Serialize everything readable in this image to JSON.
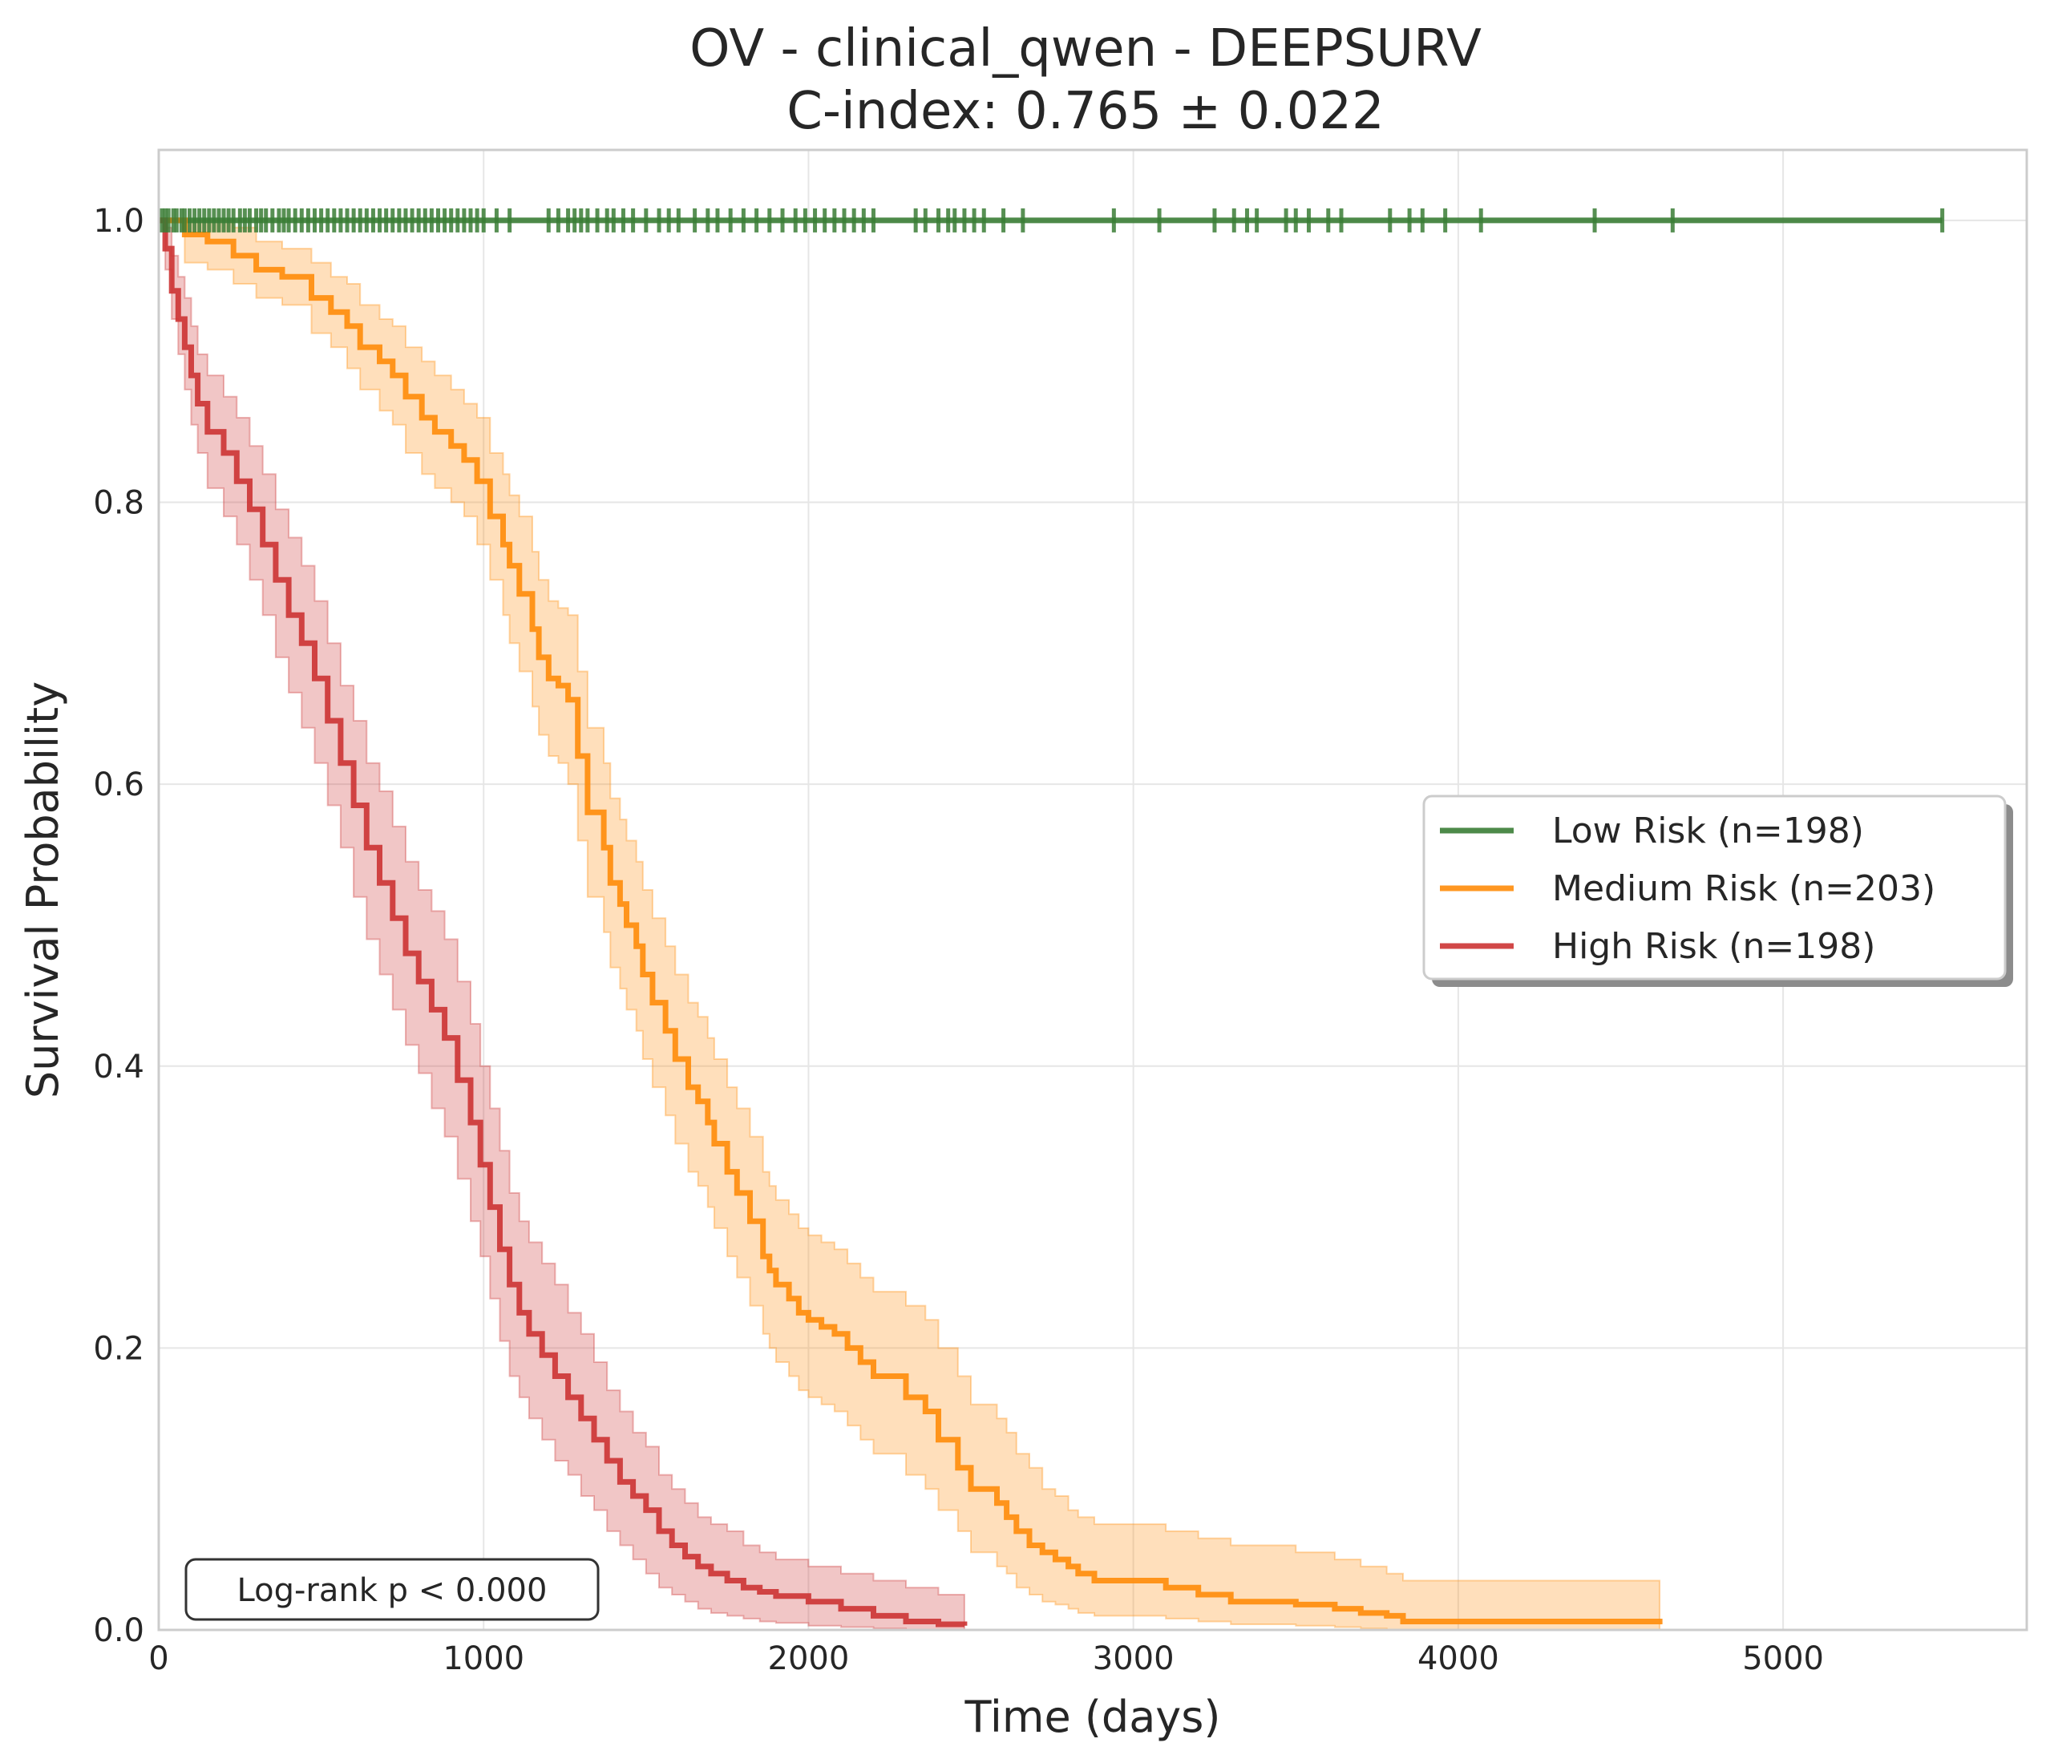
{
  "chart_data": {
    "type": "line",
    "title": "OV - clinical_qwen - DEEPSURV",
    "subtitle": "C-index: 0.765 ± 0.022",
    "xlabel": "Time (days)",
    "ylabel": "Survival Probability",
    "xlim": [
      0,
      5750
    ],
    "ylim": [
      0,
      1.05
    ],
    "x_ticks": [
      0,
      1000,
      2000,
      3000,
      4000,
      5000
    ],
    "x_tick_labels": [
      "0",
      "1000",
      "2000",
      "3000",
      "4000",
      "5000"
    ],
    "y_ticks": [
      0,
      0.2,
      0.4,
      0.6,
      0.8,
      1.0
    ],
    "y_tick_labels": [
      "0.0",
      "0.2",
      "0.4",
      "0.6",
      "0.8",
      "1.0"
    ],
    "grid": true,
    "legend_position": "center-right",
    "annotation": "Log-rank p < 0.000",
    "series": [
      {
        "name": "Low Risk (n=198)",
        "color": "#3a7d35",
        "x": [
          0,
          5490
        ],
        "y": [
          1.0,
          1.0
        ],
        "censor_times": [
          10,
          20,
          30,
          45,
          55,
          70,
          80,
          95,
          110,
          125,
          140,
          155,
          170,
          185,
          200,
          215,
          230,
          250,
          265,
          280,
          300,
          315,
          330,
          350,
          370,
          385,
          400,
          420,
          440,
          460,
          480,
          500,
          520,
          540,
          560,
          580,
          600,
          620,
          640,
          660,
          680,
          700,
          720,
          740,
          760,
          780,
          800,
          820,
          840,
          860,
          880,
          900,
          920,
          940,
          960,
          980,
          1000,
          1040,
          1080,
          1200,
          1230,
          1260,
          1280,
          1300,
          1320,
          1350,
          1380,
          1400,
          1430,
          1460,
          1500,
          1540,
          1570,
          1600,
          1650,
          1690,
          1720,
          1760,
          1800,
          1840,
          1880,
          1920,
          1960,
          1990,
          2020,
          2050,
          2080,
          2110,
          2140,
          2170,
          2200,
          2330,
          2360,
          2400,
          2430,
          2450,
          2480,
          2510,
          2540,
          2600,
          2660,
          2940,
          3080,
          3250,
          3310,
          3350,
          3380,
          3470,
          3500,
          3540,
          3600,
          3640,
          3790,
          3850,
          3890,
          3960,
          4070,
          4420,
          4660,
          5490
        ]
      },
      {
        "name": "Medium Risk (n=203)",
        "color": "#ff8c0a",
        "x": [
          0,
          80,
          150,
          230,
          300,
          380,
          470,
          530,
          580,
          620,
          680,
          720,
          760,
          810,
          850,
          900,
          940,
          980,
          1020,
          1060,
          1080,
          1110,
          1150,
          1170,
          1200,
          1230,
          1260,
          1290,
          1320,
          1370,
          1390,
          1420,
          1440,
          1470,
          1490,
          1520,
          1560,
          1590,
          1630,
          1660,
          1690,
          1710,
          1750,
          1780,
          1820,
          1860,
          1880,
          1900,
          1940,
          1970,
          2000,
          2040,
          2080,
          2120,
          2160,
          2200,
          2300,
          2360,
          2400,
          2460,
          2500,
          2580,
          2610,
          2640,
          2680,
          2720,
          2760,
          2800,
          2830,
          2880,
          3100,
          3200,
          3300,
          3500,
          3620,
          3700,
          3780,
          3830,
          4620
        ],
        "y": [
          1.0,
          0.99,
          0.985,
          0.975,
          0.965,
          0.96,
          0.945,
          0.935,
          0.925,
          0.91,
          0.9,
          0.89,
          0.875,
          0.86,
          0.85,
          0.84,
          0.83,
          0.815,
          0.79,
          0.77,
          0.755,
          0.735,
          0.71,
          0.69,
          0.675,
          0.67,
          0.66,
          0.62,
          0.58,
          0.555,
          0.53,
          0.515,
          0.5,
          0.485,
          0.465,
          0.445,
          0.425,
          0.405,
          0.385,
          0.375,
          0.36,
          0.345,
          0.325,
          0.31,
          0.29,
          0.265,
          0.255,
          0.245,
          0.235,
          0.225,
          0.22,
          0.215,
          0.21,
          0.2,
          0.19,
          0.18,
          0.165,
          0.155,
          0.135,
          0.115,
          0.1,
          0.09,
          0.08,
          0.07,
          0.06,
          0.055,
          0.05,
          0.045,
          0.04,
          0.035,
          0.03,
          0.025,
          0.02,
          0.018,
          0.015,
          0.012,
          0.01,
          0.006,
          0.004
        ],
        "ci_lower": [
          1.0,
          0.97,
          0.965,
          0.955,
          0.945,
          0.94,
          0.92,
          0.91,
          0.895,
          0.88,
          0.865,
          0.855,
          0.835,
          0.82,
          0.81,
          0.8,
          0.79,
          0.77,
          0.745,
          0.72,
          0.7,
          0.68,
          0.655,
          0.635,
          0.62,
          0.615,
          0.6,
          0.56,
          0.52,
          0.495,
          0.47,
          0.455,
          0.44,
          0.425,
          0.405,
          0.385,
          0.365,
          0.345,
          0.325,
          0.315,
          0.3,
          0.285,
          0.265,
          0.25,
          0.23,
          0.21,
          0.2,
          0.19,
          0.18,
          0.17,
          0.165,
          0.16,
          0.155,
          0.145,
          0.135,
          0.125,
          0.11,
          0.1,
          0.085,
          0.07,
          0.055,
          0.045,
          0.04,
          0.03,
          0.025,
          0.02,
          0.018,
          0.015,
          0.012,
          0.01,
          0.008,
          0.006,
          0.004,
          0.003,
          0.002,
          0.001,
          0.0,
          0.0,
          0.0
        ],
        "ci_upper": [
          1.0,
          1.0,
          1.0,
          0.995,
          0.985,
          0.98,
          0.97,
          0.96,
          0.955,
          0.94,
          0.93,
          0.925,
          0.91,
          0.9,
          0.89,
          0.88,
          0.87,
          0.86,
          0.835,
          0.82,
          0.805,
          0.79,
          0.765,
          0.745,
          0.73,
          0.725,
          0.72,
          0.68,
          0.64,
          0.615,
          0.59,
          0.575,
          0.56,
          0.545,
          0.525,
          0.505,
          0.485,
          0.465,
          0.445,
          0.435,
          0.42,
          0.405,
          0.385,
          0.37,
          0.35,
          0.325,
          0.315,
          0.305,
          0.295,
          0.285,
          0.28,
          0.275,
          0.27,
          0.26,
          0.25,
          0.24,
          0.23,
          0.22,
          0.2,
          0.18,
          0.16,
          0.15,
          0.14,
          0.125,
          0.115,
          0.1,
          0.095,
          0.085,
          0.08,
          0.075,
          0.07,
          0.065,
          0.06,
          0.055,
          0.05,
          0.045,
          0.04,
          0.035,
          0.03
        ]
      },
      {
        "name": "High Risk (n=198)",
        "color": "#cc3333",
        "x": [
          0,
          20,
          40,
          60,
          80,
          100,
          120,
          150,
          200,
          240,
          280,
          320,
          360,
          400,
          440,
          480,
          520,
          560,
          600,
          640,
          680,
          720,
          760,
          800,
          840,
          880,
          920,
          960,
          990,
          1020,
          1050,
          1080,
          1110,
          1140,
          1180,
          1220,
          1260,
          1300,
          1340,
          1380,
          1420,
          1460,
          1500,
          1540,
          1580,
          1620,
          1660,
          1700,
          1750,
          1800,
          1850,
          1900,
          2000,
          2100,
          2200,
          2300,
          2400,
          2480
        ],
        "y": [
          1.0,
          0.98,
          0.95,
          0.93,
          0.91,
          0.89,
          0.87,
          0.85,
          0.835,
          0.815,
          0.795,
          0.77,
          0.745,
          0.72,
          0.7,
          0.675,
          0.645,
          0.615,
          0.585,
          0.555,
          0.53,
          0.505,
          0.48,
          0.46,
          0.44,
          0.42,
          0.39,
          0.36,
          0.33,
          0.3,
          0.27,
          0.245,
          0.225,
          0.21,
          0.195,
          0.18,
          0.165,
          0.15,
          0.135,
          0.12,
          0.105,
          0.095,
          0.085,
          0.07,
          0.06,
          0.052,
          0.045,
          0.04,
          0.035,
          0.03,
          0.027,
          0.024,
          0.02,
          0.015,
          0.01,
          0.006,
          0.004,
          0.003
        ],
        "ci_lower": [
          1.0,
          0.965,
          0.93,
          0.905,
          0.88,
          0.855,
          0.835,
          0.81,
          0.79,
          0.77,
          0.745,
          0.72,
          0.69,
          0.665,
          0.64,
          0.615,
          0.585,
          0.555,
          0.52,
          0.49,
          0.465,
          0.44,
          0.415,
          0.395,
          0.37,
          0.35,
          0.32,
          0.29,
          0.265,
          0.235,
          0.205,
          0.18,
          0.165,
          0.15,
          0.135,
          0.12,
          0.11,
          0.095,
          0.085,
          0.07,
          0.06,
          0.05,
          0.04,
          0.03,
          0.025,
          0.02,
          0.015,
          0.012,
          0.01,
          0.008,
          0.006,
          0.005,
          0.003,
          0.002,
          0.001,
          0.0,
          0.0,
          0.0
        ],
        "ci_upper": [
          1.0,
          0.995,
          0.975,
          0.96,
          0.945,
          0.925,
          0.905,
          0.89,
          0.875,
          0.86,
          0.84,
          0.82,
          0.795,
          0.775,
          0.755,
          0.73,
          0.7,
          0.67,
          0.645,
          0.615,
          0.595,
          0.57,
          0.545,
          0.525,
          0.51,
          0.49,
          0.46,
          0.43,
          0.4,
          0.37,
          0.34,
          0.31,
          0.29,
          0.275,
          0.26,
          0.245,
          0.225,
          0.21,
          0.19,
          0.17,
          0.155,
          0.14,
          0.13,
          0.11,
          0.1,
          0.09,
          0.08,
          0.075,
          0.07,
          0.06,
          0.055,
          0.05,
          0.045,
          0.04,
          0.035,
          0.03,
          0.025,
          0.02
        ]
      }
    ]
  }
}
